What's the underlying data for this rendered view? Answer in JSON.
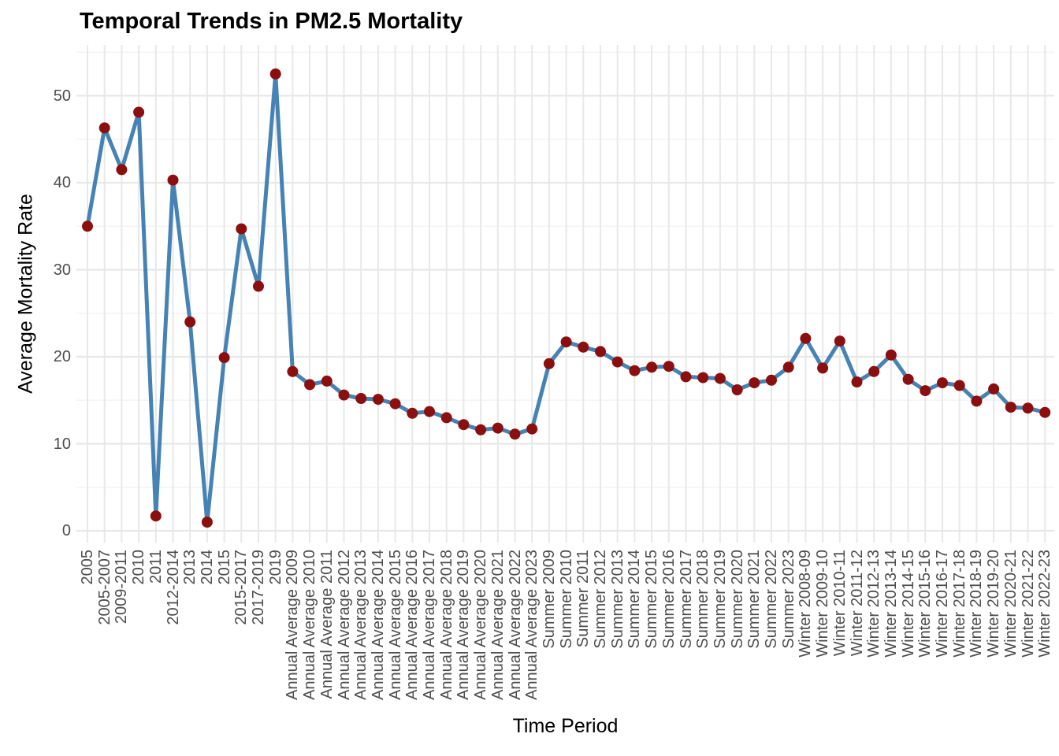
{
  "chart_data": {
    "type": "line",
    "title": "Temporal Trends in PM2.5 Mortality",
    "xlabel": "Time Period",
    "ylabel": "Average Mortality Rate",
    "ylim": [
      -1.5,
      55.5
    ],
    "yticks": [
      0,
      10,
      20,
      30,
      40,
      50
    ],
    "grid": true,
    "legend_position": "none",
    "line_color": "#4682B4",
    "point_color": "#8B0F0F",
    "grid_major_color": "#E8E8E8",
    "grid_minor_color": "#F3F3F3",
    "tick_label_color": "#4d4d4d",
    "categories": [
      "2005",
      "2005-2007",
      "2009-2011",
      "2010",
      "2011",
      "2012-2014",
      "2013",
      "2014",
      "2015",
      "2015-2017",
      "2017-2019",
      "2019",
      "Annual Average 2009",
      "Annual Average 2010",
      "Annual Average 2011",
      "Annual Average 2012",
      "Annual Average 2013",
      "Annual Average 2014",
      "Annual Average 2015",
      "Annual Average 2016",
      "Annual Average 2017",
      "Annual Average 2018",
      "Annual Average 2019",
      "Annual Average 2020",
      "Annual Average 2021",
      "Annual Average 2022",
      "Annual Average 2023",
      "Summer 2009",
      "Summer 2010",
      "Summer 2011",
      "Summer 2012",
      "Summer 2013",
      "Summer 2014",
      "Summer 2015",
      "Summer 2016",
      "Summer 2017",
      "Summer 2018",
      "Summer 2019",
      "Summer 2020",
      "Summer 2021",
      "Summer 2022",
      "Summer 2023",
      "Winter 2008-09",
      "Winter 2009-10",
      "Winter 2010-11",
      "Winter 2011-12",
      "Winter 2012-13",
      "Winter 2013-14",
      "Winter 2014-15",
      "Winter 2015-16",
      "Winter 2016-17",
      "Winter 2017-18",
      "Winter 2018-19",
      "Winter 2019-20",
      "Winter 2020-21",
      "Winter 2021-22",
      "Winter 2022-23"
    ],
    "values": [
      35.0,
      46.3,
      41.5,
      48.1,
      1.7,
      40.3,
      24.0,
      1.0,
      19.9,
      34.7,
      28.1,
      52.5,
      18.3,
      16.8,
      17.2,
      15.6,
      15.2,
      15.1,
      14.6,
      13.5,
      13.7,
      13.0,
      12.2,
      11.6,
      11.8,
      11.1,
      11.7,
      19.2,
      21.7,
      21.1,
      20.6,
      19.4,
      18.4,
      18.8,
      18.9,
      17.7,
      17.6,
      17.5,
      16.2,
      17.0,
      17.3,
      18.8,
      22.1,
      18.7,
      21.8,
      17.1,
      18.3,
      20.2,
      17.4,
      16.1,
      17.0,
      16.7,
      14.9,
      16.3,
      14.2,
      14.1,
      13.6
    ]
  }
}
